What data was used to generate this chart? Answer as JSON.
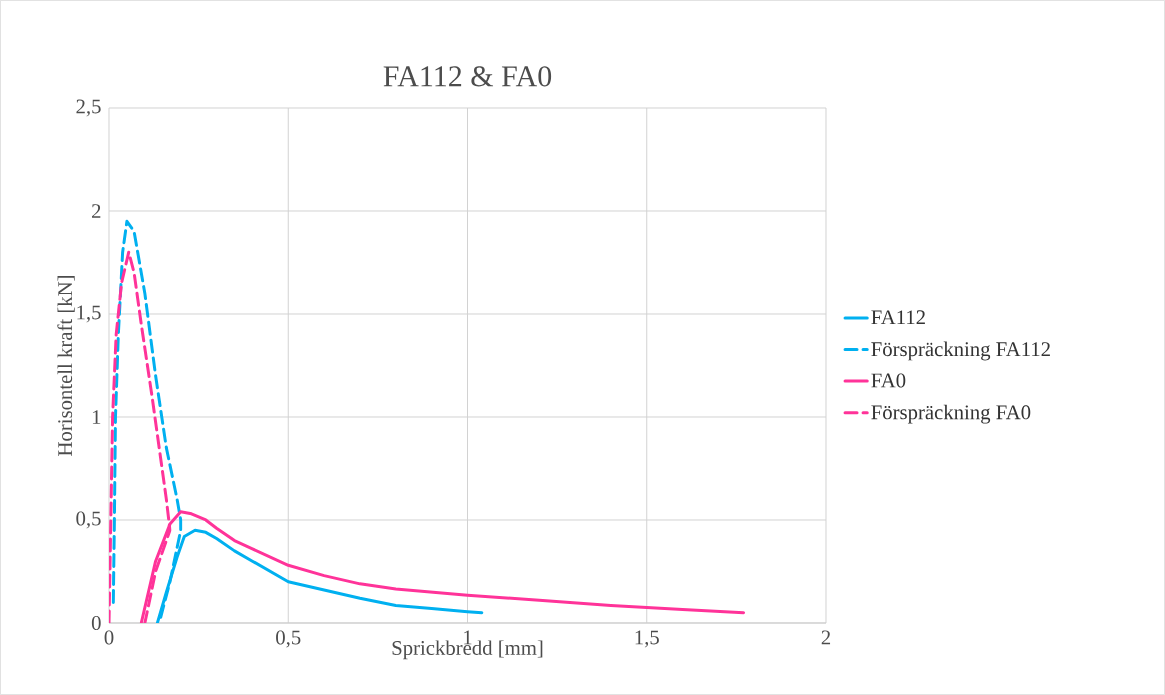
{
  "chart_data": {
    "type": "line",
    "title": "FA112 & FA0",
    "xlabel": "Sprickbredd [mm]",
    "ylabel": "Horisontell kraft [kN]",
    "xlim": [
      0,
      2
    ],
    "ylim": [
      0,
      2.5
    ],
    "xticks": [
      0,
      {
        "value": 0.5,
        "label": "0,5"
      },
      1,
      {
        "value": 1.5,
        "label": "1,5"
      },
      2
    ],
    "yticks": [
      0,
      {
        "value": 0.5,
        "label": "0,5"
      },
      1,
      {
        "value": 1.5,
        "label": "1,5"
      },
      2,
      {
        "value": 2.5,
        "label": "2,5"
      }
    ],
    "grid": true,
    "legend": "right",
    "marker": "none",
    "series": [
      {
        "name": "FA112",
        "color": "#00b0f0",
        "line_style": "solid",
        "x": [
          0.135,
          0.16,
          0.19,
          0.21,
          0.24,
          0.27,
          0.3,
          0.35,
          0.4,
          0.5,
          0.6,
          0.7,
          0.8,
          0.9,
          1.0,
          1.04
        ],
        "values": [
          0,
          0.15,
          0.32,
          0.42,
          0.45,
          0.44,
          0.41,
          0.35,
          0.3,
          0.2,
          0.16,
          0.12,
          0.085,
          0.07,
          0.055,
          0.05
        ]
      },
      {
        "name": "Förspräckning FA112",
        "color": "#00b0f0",
        "line_style": "dashed",
        "x": [
          0.012,
          0.015,
          0.018,
          0.026,
          0.038,
          0.05,
          0.07,
          0.1,
          0.13,
          0.16,
          0.19,
          0.2,
          0.2,
          0.17,
          0.14
        ],
        "values": [
          0.1,
          0.5,
          1.0,
          1.4,
          1.8,
          1.95,
          1.9,
          1.6,
          1.2,
          0.85,
          0.6,
          0.5,
          0.45,
          0.2,
          0
        ]
      },
      {
        "name": "FA0",
        "color": "#ff3399",
        "line_style": "solid",
        "x": [
          0.09,
          0.13,
          0.17,
          0.2,
          0.23,
          0.27,
          0.3,
          0.35,
          0.4,
          0.5,
          0.6,
          0.7,
          0.8,
          1.0,
          1.2,
          1.4,
          1.6,
          1.77
        ],
        "values": [
          0,
          0.3,
          0.48,
          0.54,
          0.53,
          0.5,
          0.46,
          0.4,
          0.36,
          0.28,
          0.23,
          0.19,
          0.165,
          0.135,
          0.11,
          0.085,
          0.065,
          0.05
        ]
      },
      {
        "name": "Förspräckning FA0",
        "color": "#ff3399",
        "line_style": "dashed",
        "x": [
          0,
          0.005,
          0.01,
          0.02,
          0.035,
          0.055,
          0.07,
          0.09,
          0.12,
          0.14,
          0.16,
          0.17,
          0.13,
          0.1
        ],
        "values": [
          0,
          0.5,
          1.0,
          1.4,
          1.65,
          1.8,
          1.7,
          1.45,
          1.1,
          0.85,
          0.6,
          0.45,
          0.25,
          0
        ]
      }
    ]
  }
}
